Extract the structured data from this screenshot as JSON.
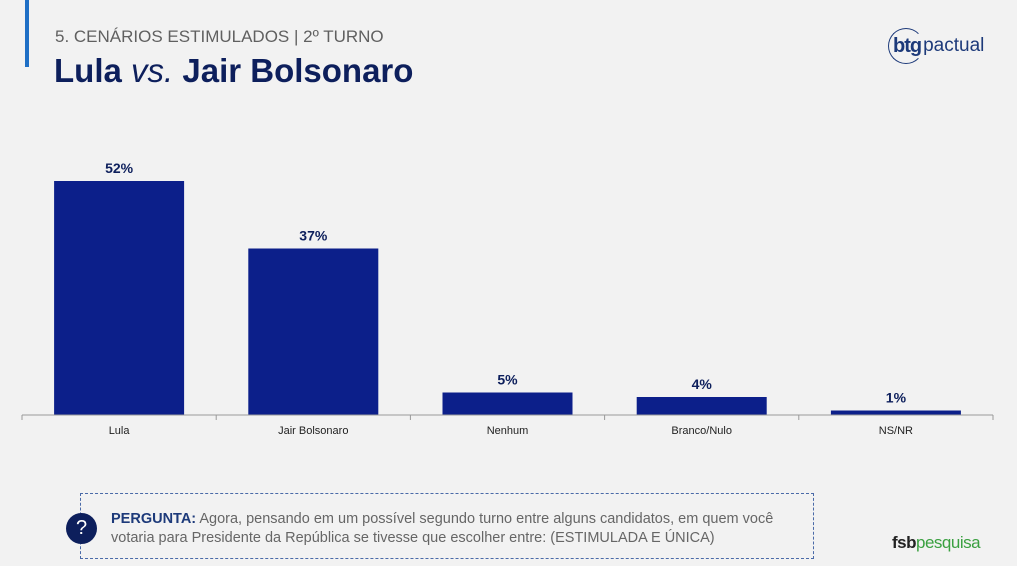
{
  "header": {
    "subtitle": "5. CENÁRIOS ESTIMULADOS | 2º TURNO",
    "title_a": "Lula",
    "title_vs": "vs.",
    "title_b": "Jair Bolsonaro"
  },
  "logo": {
    "bold": "btg",
    "light": "pactual"
  },
  "chart_data": {
    "type": "bar",
    "title": "",
    "xlabel": "",
    "ylabel": "",
    "ylim": [
      0,
      52
    ],
    "grid": false,
    "categories": [
      "Lula",
      "Jair Bolsonaro",
      "Nenhum",
      "Branco/Nulo",
      "NS/NR"
    ],
    "values": [
      52,
      37,
      5,
      4,
      1
    ],
    "labels": [
      "52%",
      "37%",
      "5%",
      "4%",
      "1%"
    ],
    "color": "#0c1f8a"
  },
  "question": {
    "label": "PERGUNTA:",
    "text": "Agora, pensando em um possível segundo turno entre alguns candidatos, em quem você votaria para Presidente da República se tivesse que escolher entre: (ESTIMULADA E ÚNICA)",
    "icon": "?"
  },
  "footer": {
    "brand_a": "fsb",
    "brand_b": "pesquisa"
  }
}
